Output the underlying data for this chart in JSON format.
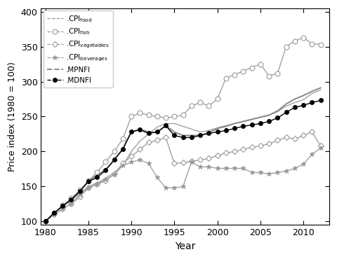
{
  "years": [
    1980,
    1981,
    1982,
    1983,
    1984,
    1985,
    1986,
    1987,
    1988,
    1989,
    1990,
    1991,
    1992,
    1993,
    1994,
    1995,
    1996,
    1997,
    1998,
    1999,
    2000,
    2001,
    2002,
    2003,
    2004,
    2005,
    2006,
    2007,
    2008,
    2009,
    2010,
    2011,
    2012
  ],
  "CPI_food": [
    100,
    112,
    122,
    130,
    140,
    150,
    155,
    162,
    170,
    180,
    200,
    215,
    225,
    235,
    240,
    240,
    236,
    232,
    228,
    230,
    234,
    237,
    240,
    243,
    246,
    249,
    252,
    257,
    265,
    270,
    274,
    283,
    288
  ],
  "CPI_fish": [
    100,
    112,
    123,
    133,
    145,
    158,
    170,
    185,
    200,
    218,
    250,
    255,
    252,
    250,
    248,
    250,
    252,
    265,
    270,
    265,
    275,
    305,
    310,
    315,
    320,
    325,
    308,
    312,
    350,
    358,
    363,
    354,
    353
  ],
  "CPI_vegetables": [
    100,
    110,
    118,
    125,
    135,
    148,
    153,
    158,
    168,
    183,
    193,
    203,
    213,
    216,
    220,
    183,
    184,
    186,
    188,
    190,
    194,
    198,
    200,
    203,
    206,
    208,
    211,
    216,
    220,
    218,
    223,
    228,
    208
  ],
  "CPI_beverages": [
    100,
    110,
    118,
    125,
    138,
    148,
    153,
    160,
    167,
    180,
    185,
    188,
    183,
    163,
    148,
    148,
    150,
    185,
    178,
    178,
    176,
    176,
    176,
    176,
    170,
    170,
    168,
    170,
    172,
    176,
    182,
    196,
    205
  ],
  "MPNFI": [
    100,
    112,
    122,
    131,
    143,
    158,
    166,
    174,
    188,
    204,
    228,
    232,
    228,
    227,
    237,
    228,
    223,
    223,
    223,
    227,
    233,
    236,
    240,
    243,
    246,
    249,
    252,
    258,
    268,
    275,
    280,
    286,
    291
  ],
  "MDNFI": [
    100,
    112,
    122,
    131,
    143,
    157,
    163,
    173,
    188,
    203,
    228,
    231,
    226,
    228,
    237,
    223,
    220,
    220,
    223,
    226,
    228,
    230,
    233,
    236,
    238,
    240,
    243,
    248,
    256,
    263,
    266,
    270,
    273
  ],
  "xlim": [
    1979.5,
    2013
  ],
  "ylim": [
    95,
    405
  ],
  "yticks": [
    100,
    150,
    200,
    250,
    300,
    350,
    400
  ],
  "xticks": [
    1980,
    1985,
    1990,
    1995,
    2000,
    2005,
    2010
  ],
  "xlabel": "Year",
  "ylabel": "Price index (1980 = 100)",
  "color_gray": "#999999",
  "color_mpnfi": "#888888",
  "color_black": "#000000",
  "color_white": "#ffffff"
}
